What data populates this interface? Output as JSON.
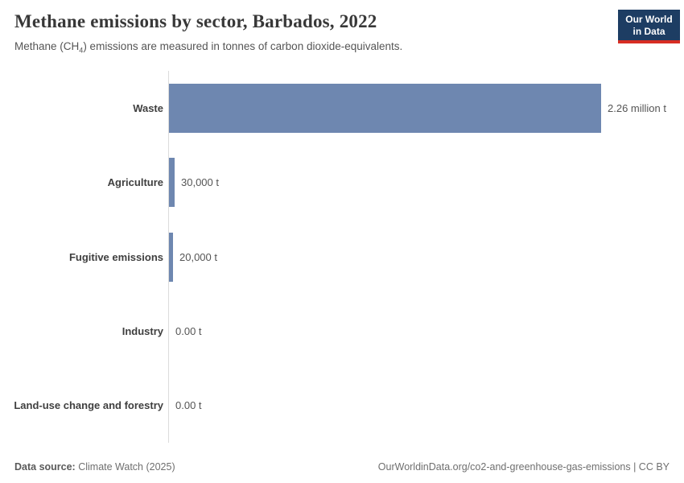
{
  "header": {
    "title": "Methane emissions by sector, Barbados, 2022",
    "subtitle_prefix": "Methane (CH",
    "subtitle_subscript": "4",
    "subtitle_suffix": ") emissions are measured in tonnes of carbon dioxide-equivalents.",
    "logo": {
      "line1": "Our World",
      "line2": "in Data"
    }
  },
  "chart_data": {
    "type": "bar",
    "orientation": "horizontal",
    "title": "Methane emissions by sector, Barbados, 2022",
    "unit": "tonnes of carbon dioxide-equivalents",
    "categories": [
      "Waste",
      "Agriculture",
      "Fugitive emissions",
      "Industry",
      "Land-use change and forestry"
    ],
    "values": [
      2260000,
      30000,
      20000,
      0,
      0
    ],
    "value_labels": [
      "2.26 million t",
      "30,000 t",
      "20,000 t",
      "0.00 t",
      "0.00 t"
    ],
    "xlim": [
      0,
      2260000
    ],
    "grid": false,
    "legend": "none",
    "bar_color": "#6e87b0",
    "axis_color": "#dcdcdc"
  },
  "footer": {
    "datasource_label": "Data source:",
    "datasource_value": " Climate Watch (2025)",
    "attribution": "OurWorldinData.org/co2-and-greenhouse-gas-emissions | CC BY"
  },
  "colors": {
    "bar": "#6e87b0",
    "logo_navy": "#1d3d63",
    "logo_red": "#d72d23",
    "title_text": "#383838",
    "subtitle_text": "#555555"
  }
}
